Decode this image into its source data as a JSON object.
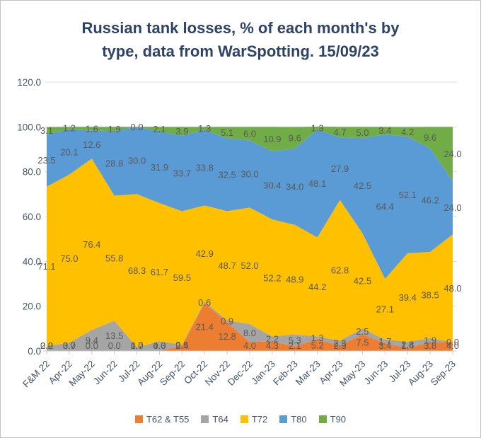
{
  "title": {
    "line1": "Russian tank losses, % of each month's by",
    "line2": "type, data from WarSpotting. 15/09/23"
  },
  "chart_data": {
    "type": "area",
    "stacked": true,
    "title": "Russian tank losses, % of each month's by type, data from WarSpotting. 15/09/23",
    "categories": [
      "F&M 22",
      "Apr-22",
      "May-22",
      "Jun-22",
      "Jul-22",
      "Aug-22",
      "Sep-22",
      "Oct-22",
      "Nov-22",
      "Dec-22",
      "Jan-23",
      "Feb-23",
      "Mar-23",
      "Apr-23",
      "May-23",
      "Jun-23",
      "Jul-23",
      "Aug-23",
      "Sep-23"
    ],
    "series": [
      {
        "name": "T62 & T55",
        "color": "#ED7D31",
        "values": [
          0.0,
          0.0,
          0.0,
          0.0,
          0.0,
          0.0,
          2.4,
          21.4,
          12.8,
          4.0,
          4.3,
          2.1,
          5.2,
          2.3,
          7.5,
          3.4,
          1.4,
          3.8,
          4.0
        ]
      },
      {
        "name": "T64",
        "color": "#A5A5A5",
        "values": [
          2.2,
          3.7,
          9.4,
          13.5,
          1.7,
          4.3,
          0.5,
          0.6,
          0.9,
          8.0,
          2.2,
          5.3,
          1.3,
          2.3,
          2.5,
          1.7,
          2.8,
          1.9,
          0.0
        ]
      },
      {
        "name": "T72",
        "color": "#FFC000",
        "values": [
          71.1,
          75.0,
          76.4,
          55.8,
          68.3,
          61.7,
          59.5,
          42.9,
          48.7,
          52.0,
          52.2,
          48.9,
          44.2,
          62.8,
          42.5,
          27.1,
          39.4,
          38.5,
          48.0
        ]
      },
      {
        "name": "T80",
        "color": "#5B9BD5",
        "values": [
          23.5,
          20.1,
          12.6,
          28.8,
          30.0,
          31.9,
          33.7,
          33.8,
          32.5,
          30.0,
          30.4,
          34.0,
          48.1,
          27.9,
          42.5,
          64.4,
          52.1,
          46.2,
          24.0
        ]
      },
      {
        "name": "T90",
        "color": "#70AD47",
        "values": [
          3.1,
          1.2,
          1.6,
          1.9,
          0.0,
          2.1,
          3.9,
          1.3,
          5.1,
          6.0,
          10.9,
          9.6,
          1.3,
          4.7,
          5.0,
          3.4,
          4.2,
          9.6,
          24.0
        ]
      }
    ],
    "y_tick_values": [
      0,
      20,
      40,
      60,
      80,
      100,
      120
    ],
    "ylim": [
      0,
      120
    ],
    "ylabel": "",
    "xlabel": "",
    "data_labels": true,
    "legend_position": "bottom",
    "gridlines": "major-horizontal"
  },
  "colors": {
    "title_text": "#2e4466",
    "axis_text": "#44546a",
    "data_label_text": "#595959",
    "gridline": "#d9d9d9",
    "axis_line": "#c9c9c9",
    "background": "#ffffff"
  }
}
